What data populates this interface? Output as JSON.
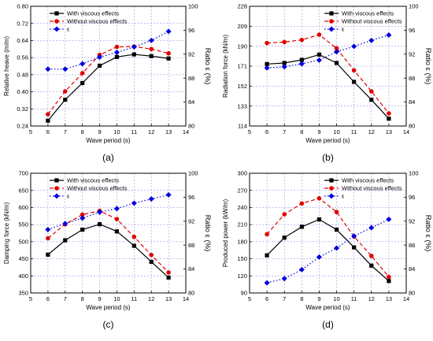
{
  "figure": {
    "panels": [
      "a",
      "b",
      "c",
      "d"
    ]
  },
  "colors": {
    "with_viscous": "#000000",
    "without_viscous": "#e00000",
    "epsilon": "#0000dd",
    "grid": "#9a9ae6"
  },
  "chart_data": [
    {
      "id": "a",
      "type": "line",
      "caption": "(a)",
      "xlabel": "Wave period (s)",
      "ylabel": "Relative heave (m/m)",
      "y2label": "Ratio ε (%)",
      "xlim": [
        5,
        14
      ],
      "xticks": [
        "5",
        "6",
        "7",
        "8",
        "9",
        "10",
        "11",
        "12",
        "13",
        "14"
      ],
      "ylim": [
        0.24,
        0.8
      ],
      "yticks": [
        "0.24",
        "0.32",
        "0.40",
        "0.48",
        "0.56",
        "0.64",
        "0.72",
        "0.80"
      ],
      "y2lim": [
        80,
        100
      ],
      "y2ticks": [
        "80",
        "84",
        "88",
        "92",
        "96",
        "100"
      ],
      "grid": true,
      "legend": "top-left",
      "x": [
        6,
        7,
        8,
        9,
        10,
        11,
        12,
        13
      ],
      "series": [
        {
          "name": "With viscous effects",
          "axis": "left",
          "style": "solid",
          "marker": "square",
          "values": [
            0.265,
            0.363,
            0.441,
            0.522,
            0.563,
            0.575,
            0.567,
            0.556
          ]
        },
        {
          "name": "Without viscous effects",
          "axis": "left",
          "style": "dashed",
          "marker": "circle",
          "values": [
            0.295,
            0.402,
            0.487,
            0.573,
            0.61,
            0.612,
            0.6,
            0.58
          ]
        },
        {
          "name": "ε",
          "axis": "right",
          "style": "dotted",
          "marker": "diamond",
          "values": [
            89.5,
            89.5,
            90.4,
            91.5,
            92.3,
            93.2,
            94.3,
            95.8
          ]
        }
      ]
    },
    {
      "id": "b",
      "type": "line",
      "caption": "(b)",
      "xlabel": "Wave period (s)",
      "ylabel": "Radiation force (kN/m)",
      "y2label": "Ratio ε (%)",
      "xlim": [
        5,
        14
      ],
      "xticks": [
        "5",
        "6",
        "7",
        "8",
        "9",
        "10",
        "11",
        "12",
        "13",
        "14"
      ],
      "ylim": [
        114,
        228
      ],
      "yticks": [
        "114",
        "133",
        "152",
        "171",
        "190",
        "209",
        "228"
      ],
      "y2lim": [
        80,
        100
      ],
      "y2ticks": [
        "80",
        "84",
        "88",
        "92",
        "96",
        "100"
      ],
      "grid": true,
      "legend": "top-right",
      "x": [
        6,
        7,
        8,
        9,
        10,
        11,
        12,
        13
      ],
      "series": [
        {
          "name": "With viscous effects",
          "axis": "left",
          "style": "solid",
          "marker": "square",
          "values": [
            173,
            174,
            177,
            182,
            174,
            156,
            139,
            121
          ]
        },
        {
          "name": "Without viscous effects",
          "axis": "left",
          "style": "dashed",
          "marker": "circle",
          "values": [
            193,
            194,
            196,
            201,
            188,
            167,
            147,
            126
          ]
        },
        {
          "name": "ε",
          "axis": "right",
          "style": "dotted",
          "marker": "diamond",
          "values": [
            89.7,
            89.9,
            90.4,
            91.0,
            92.4,
            93.3,
            94.3,
            95.2
          ]
        }
      ]
    },
    {
      "id": "c",
      "type": "line",
      "caption": "(c)",
      "xlabel": "Wave period (s)",
      "ylabel": "Damping force (kN/m)",
      "y2label": "Ratio ε (%)",
      "xlim": [
        5,
        14
      ],
      "xticks": [
        "5",
        "6",
        "7",
        "8",
        "9",
        "10",
        "11",
        "12",
        "13",
        "14"
      ],
      "ylim": [
        350,
        700
      ],
      "yticks": [
        "350",
        "400",
        "450",
        "500",
        "550",
        "600",
        "650",
        "700"
      ],
      "y2lim": [
        80,
        100
      ],
      "y2ticks": [
        "80",
        "84",
        "88",
        "92",
        "96",
        "100"
      ],
      "grid": true,
      "legend": "top-left",
      "x": [
        6,
        7,
        8,
        9,
        10,
        11,
        12,
        13
      ],
      "series": [
        {
          "name": "With viscous effects",
          "axis": "left",
          "style": "solid",
          "marker": "square",
          "values": [
            462,
            504,
            535,
            551,
            530,
            488,
            441,
            395
          ]
        },
        {
          "name": "Without viscous effects",
          "axis": "left",
          "style": "dashed",
          "marker": "circle",
          "values": [
            510,
            551,
            579,
            590,
            566,
            514,
            461,
            410
          ]
        },
        {
          "name": "ε",
          "axis": "right",
          "style": "dotted",
          "marker": "diamond",
          "values": [
            90.6,
            91.6,
            92.5,
            93.5,
            94.1,
            95.0,
            95.7,
            96.4
          ]
        }
      ]
    },
    {
      "id": "d",
      "type": "line",
      "caption": "(d)",
      "xlabel": "Wave period (s)",
      "ylabel": "Produced power (kW/m)",
      "y2label": "Ratio ε (%)",
      "xlim": [
        5,
        14
      ],
      "xticks": [
        "5",
        "6",
        "7",
        "8",
        "9",
        "10",
        "11",
        "12",
        "13",
        "14"
      ],
      "ylim": [
        90,
        300
      ],
      "yticks": [
        "90",
        "120",
        "150",
        "180",
        "210",
        "240",
        "270",
        "300"
      ],
      "y2lim": [
        80,
        100
      ],
      "y2ticks": [
        "80",
        "84",
        "88",
        "92",
        "96",
        "100"
      ],
      "grid": true,
      "legend": "top-right",
      "x": [
        6,
        7,
        8,
        9,
        10,
        11,
        12,
        13
      ],
      "series": [
        {
          "name": "With viscous effects",
          "axis": "left",
          "style": "solid",
          "marker": "square",
          "values": [
            156,
            187,
            206,
            219,
            201,
            170,
            138,
            111
          ]
        },
        {
          "name": "Without viscous effects",
          "axis": "left",
          "style": "dashed",
          "marker": "circle",
          "values": [
            193,
            228,
            247,
            256,
            232,
            189,
            155,
            118
          ]
        },
        {
          "name": "ε",
          "axis": "right",
          "style": "dotted",
          "marker": "diamond",
          "values": [
            81.7,
            82.4,
            83.9,
            86.0,
            87.5,
            89.5,
            90.9,
            92.3
          ]
        }
      ]
    }
  ]
}
